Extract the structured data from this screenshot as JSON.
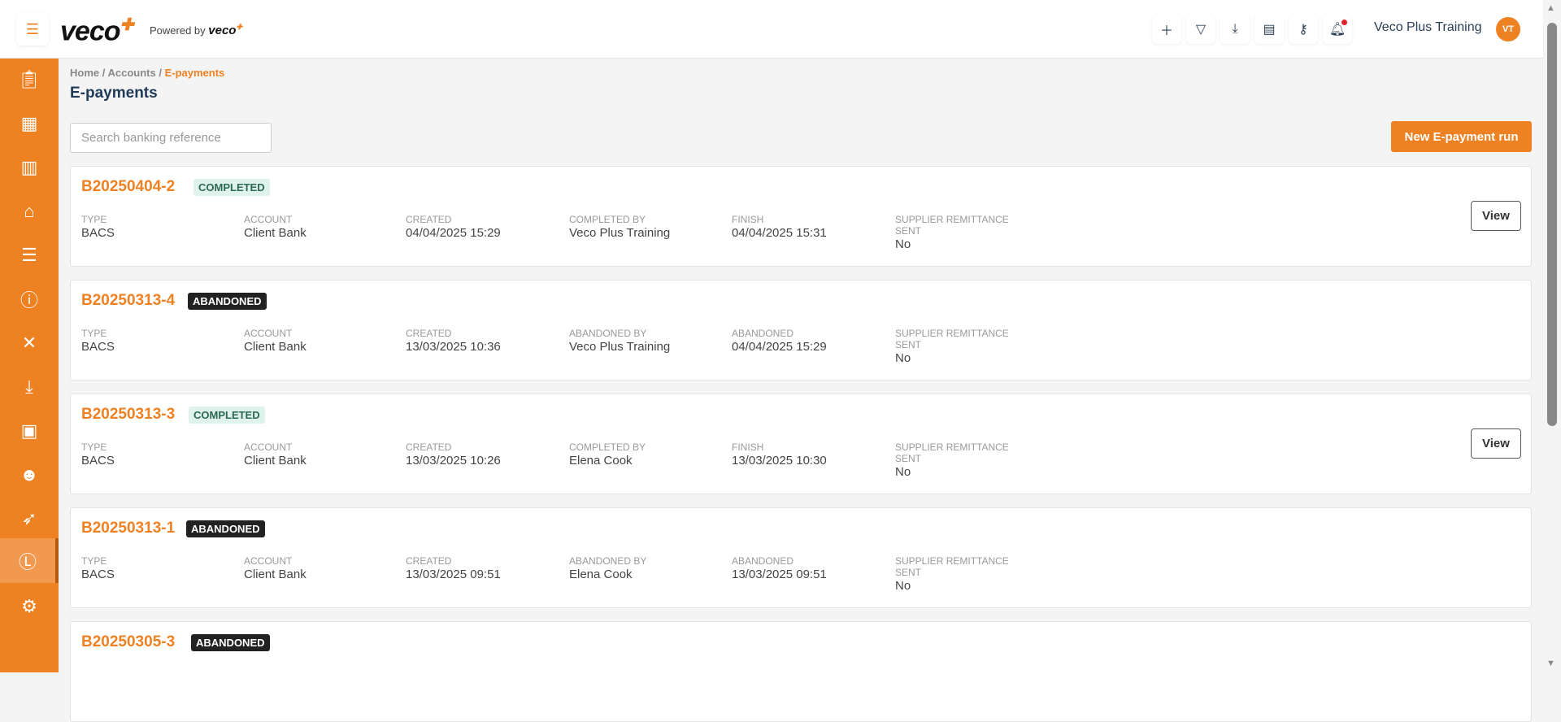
{
  "header": {
    "logo": "veco",
    "powered_by": "Powered by",
    "powered_logo": "veco",
    "user_name": "Veco Plus Training",
    "avatar_initials": "VT",
    "tools": [
      "plus-icon",
      "filter-icon",
      "folder-download-icon",
      "table-icon",
      "key-icon",
      "bell-icon"
    ]
  },
  "sidebar": {
    "items": [
      "clipboard-check-icon",
      "calendar-icon",
      "building-icon",
      "house-user-icon",
      "checklist-icon",
      "alert-message-icon",
      "tools-icon",
      "download-tray-icon",
      "contacts-book-icon",
      "worker-icon",
      "rocket-icon",
      "pound-icon",
      "gear-icon"
    ],
    "active": "pound-icon"
  },
  "breadcrumb": {
    "home": "Home",
    "accounts": "Accounts",
    "current": "E-payments"
  },
  "page_title": "E-payments",
  "search": {
    "placeholder": "Search banking reference",
    "value": ""
  },
  "new_button": "New E-payment run",
  "labels": {
    "type": "TYPE",
    "account": "ACCOUNT",
    "created": "CREATED",
    "supplier": "SUPPLIER REMITTANCE",
    "sent": "SENT",
    "view": "View"
  },
  "colors": {
    "accent": "#ee8122",
    "title": "#1f3b57"
  },
  "runs": [
    {
      "ref": "B20250404-2",
      "status": "COMPLETED",
      "type": "BACS",
      "account": "Client Bank",
      "created": "04/04/2025 15:29",
      "by_label": "COMPLETED BY",
      "by": "Veco Plus Training",
      "end_label": "FINISH",
      "end": "04/04/2025 15:31",
      "remittance": "No"
    },
    {
      "ref": "B20250313-4",
      "status": "ABANDONED",
      "type": "BACS",
      "account": "Client Bank",
      "created": "13/03/2025 10:36",
      "by_label": "ABANDONED BY",
      "by": "Veco Plus Training",
      "end_label": "ABANDONED",
      "end": "04/04/2025 15:29",
      "remittance": "No"
    },
    {
      "ref": "B20250313-3",
      "status": "COMPLETED",
      "type": "BACS",
      "account": "Client Bank",
      "created": "13/03/2025 10:26",
      "by_label": "COMPLETED BY",
      "by": "Elena Cook",
      "end_label": "FINISH",
      "end": "13/03/2025 10:30",
      "remittance": "No"
    },
    {
      "ref": "B20250313-1",
      "status": "ABANDONED",
      "type": "BACS",
      "account": "Client Bank",
      "created": "13/03/2025 09:51",
      "by_label": "ABANDONED BY",
      "by": "Elena Cook",
      "end_label": "ABANDONED",
      "end": "13/03/2025 09:51",
      "remittance": "No"
    },
    {
      "ref": "B20250305-3",
      "status": "ABANDONED"
    }
  ]
}
